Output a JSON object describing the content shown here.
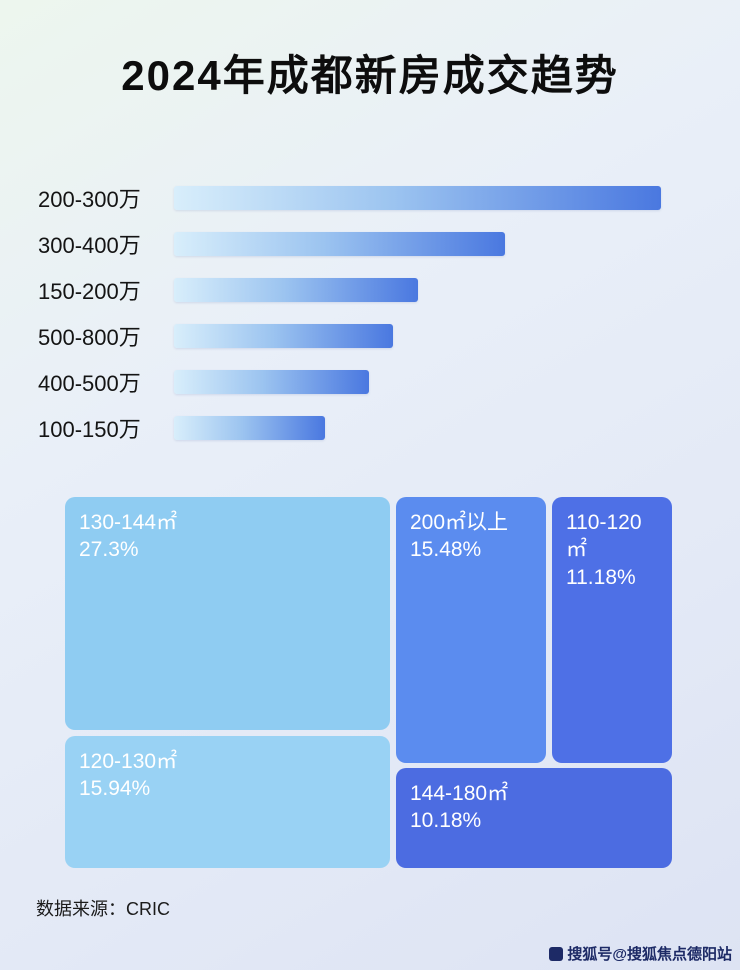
{
  "page": {
    "title": "2024年成都新房成交趋势",
    "source_label": "数据来源：CRIC",
    "watermark": "搜狐号@搜狐焦点德阳站"
  },
  "chart_data": [
    {
      "type": "bar",
      "orientation": "horizontal",
      "title": "2024年成都新房成交趋势",
      "categories": [
        "200-300万",
        "300-400万",
        "150-200万",
        "500-800万",
        "400-500万",
        "100-150万"
      ],
      "values": [
        100,
        68,
        50,
        45,
        40,
        31
      ],
      "value_note": "relative bar length, % of longest bar (no numeric labels shown in image)",
      "bar_color_gradient": [
        "#d8eefb",
        "#4a78e0"
      ],
      "legend": "none",
      "grid": "off"
    },
    {
      "type": "treemap",
      "items": [
        {
          "label": "130-144㎡",
          "value": 27.3,
          "value_text": "27.3%",
          "color": "#8fccf2"
        },
        {
          "label": "120-130㎡",
          "value": 15.94,
          "value_text": "15.94%",
          "color": "#99d2f4"
        },
        {
          "label": "200㎡以上",
          "value": 15.48,
          "value_text": "15.48%",
          "color": "#5b8cef"
        },
        {
          "label": "110-120㎡",
          "value": 11.18,
          "value_text": "11.18%",
          "color": "#4e70e6"
        },
        {
          "label": "144-180㎡",
          "value": 10.18,
          "value_text": "10.18%",
          "color": "#4c6ce1"
        }
      ]
    }
  ]
}
